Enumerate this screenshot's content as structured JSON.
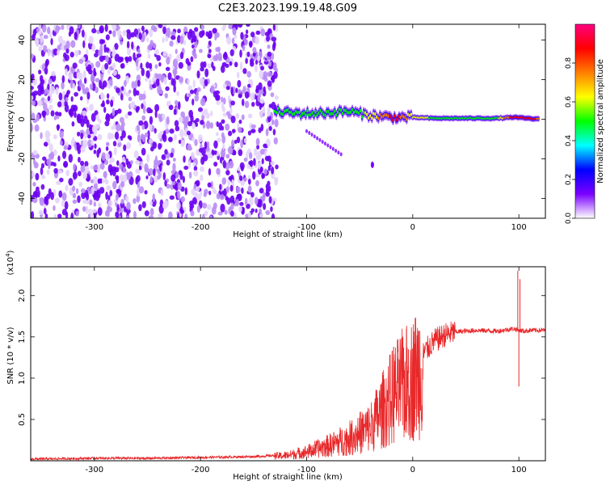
{
  "title": "C2E3.2023.199.19.48.G09",
  "chart_data": [
    {
      "type": "heatmap",
      "xlabel": "Height of straight line (km)",
      "ylabel": "Frequency (Hz)",
      "xlim": [
        -360,
        125
      ],
      "ylim": [
        -50,
        48
      ],
      "xticks": [
        -300,
        -200,
        -100,
        0,
        100
      ],
      "yticks": [
        -40,
        -20,
        0,
        20,
        40
      ],
      "colorbar": {
        "label": "Normalized spectral amplitude",
        "range": [
          0,
          1
        ],
        "ticks": [
          0.0,
          0.2,
          0.4,
          0.6,
          0.8
        ],
        "colormap": [
          "#ffffff",
          "#7b00ff",
          "#0000ff",
          "#00ffff",
          "#00ff00",
          "#ffff00",
          "#ff7f00",
          "#ff0000",
          "#ff0080"
        ]
      },
      "noise_region_x": [
        -360,
        -128
      ],
      "signal_band": [
        {
          "x": -130,
          "f": 4,
          "amplitude": 0.5
        },
        {
          "x": -110,
          "f": 3,
          "amplitude": 0.55
        },
        {
          "x": -90,
          "f": 3,
          "amplitude": 0.5
        },
        {
          "x": -60,
          "f": 4,
          "amplitude": 0.45
        },
        {
          "x": -40,
          "f": 2,
          "amplitude": 0.6
        },
        {
          "x": -20,
          "f": 1,
          "amplitude": 0.85
        },
        {
          "x": -10,
          "f": 1,
          "amplitude": 0.8
        },
        {
          "x": 0,
          "f": 1,
          "amplitude": 0.6
        },
        {
          "x": 20,
          "f": 0.5,
          "amplitude": 0.55
        },
        {
          "x": 50,
          "f": 0.5,
          "amplitude": 0.55
        },
        {
          "x": 80,
          "f": 0.5,
          "amplitude": 0.55
        },
        {
          "x": 95,
          "f": 1,
          "amplitude": 0.9
        },
        {
          "x": 120,
          "f": 0,
          "amplitude": 0.8
        }
      ]
    },
    {
      "type": "line",
      "xlabel": "Height of straight line (km)",
      "ylabel": "SNR (10 * v/v)",
      "yexponent_label": "(x10",
      "yexponent_power": "4",
      "yexponent_close": ")",
      "xlim": [
        -360,
        125
      ],
      "ylim": [
        0,
        2.35
      ],
      "xticks": [
        -300,
        -200,
        -100,
        0,
        100
      ],
      "yticks": [
        0.5,
        1.0,
        1.5,
        2.0
      ],
      "color": "#e8282a",
      "series": [
        {
          "x": [
            -360,
            -300,
            -250,
            -200,
            -150,
            -120,
            -100,
            -80,
            -60,
            -40,
            -30,
            -20,
            -10,
            0,
            10,
            20,
            30,
            40,
            60,
            80,
            95,
            100,
            105,
            110,
            125
          ],
          "y": [
            0.02,
            0.03,
            0.03,
            0.04,
            0.05,
            0.07,
            0.12,
            0.2,
            0.3,
            0.45,
            0.65,
            0.85,
            1.0,
            1.1,
            1.3,
            1.45,
            1.52,
            1.56,
            1.58,
            1.57,
            1.6,
            1.58,
            1.57,
            1.58,
            1.58
          ]
        }
      ],
      "spikes": [
        {
          "x": -18,
          "y": 1.38
        },
        {
          "x": -14,
          "y": 1.25
        },
        {
          "x": -4,
          "y": 1.35
        },
        {
          "x": 99,
          "y": 2.3
        },
        {
          "x": 100,
          "y": 0.9
        },
        {
          "x": 101,
          "y": 2.2
        }
      ]
    }
  ]
}
